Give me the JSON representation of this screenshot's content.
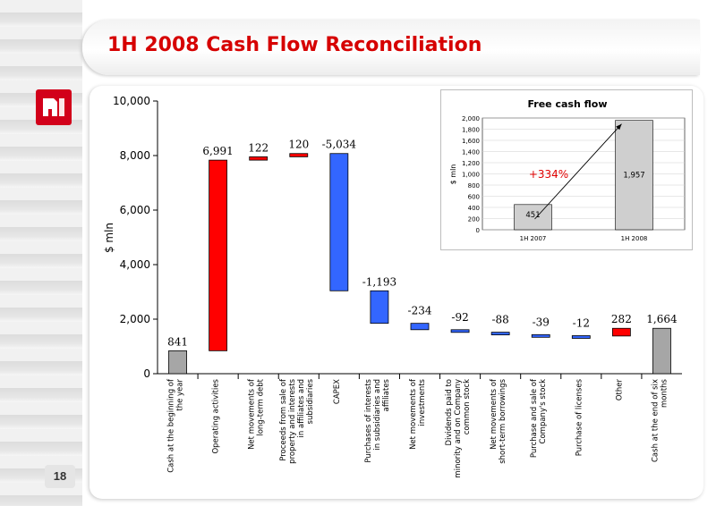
{
  "header": {
    "title": "1H 2008 Cash Flow Reconciliation"
  },
  "logo": {
    "text": "ЛУК"
  },
  "page": {
    "number": "18"
  },
  "colors": {
    "positive": "#ff0000",
    "negative": "#3366ff",
    "total": "#a6a6a6",
    "inset_bar": "#cfcfcf"
  },
  "chart_data": [
    {
      "type": "bar",
      "subtype": "waterfall",
      "title": "",
      "ylabel": "$ mln",
      "ylim": [
        0,
        10000
      ],
      "ytick_labels": [
        "0",
        "2,000",
        "4,000",
        "6,000",
        "8,000",
        "10,000"
      ],
      "grid": false,
      "categories": [
        "Cash at the beginning of the year",
        "Operating activities",
        "Net movements of long-term debt",
        "Proceeds from sale of property and interests in affiliates and subsidiaries",
        "CAPEX",
        "Purchases of interests in subsidiaries and affiliates",
        "Net movements of investments",
        "Dividends paid to minority and on Company common stock",
        "Net movements of short-term borrowings",
        "Purchase and sale of Company's stock",
        "Purchase of licenses",
        "Other",
        "Cash at the end of six months"
      ],
      "values": [
        841,
        6991,
        122,
        120,
        -5034,
        -1193,
        -234,
        -92,
        -88,
        -39,
        -12,
        282,
        1664
      ],
      "data_labels": [
        "841",
        "6,991",
        "122",
        "120",
        "-5,034",
        "-1,193",
        "-234",
        "-92",
        "-88",
        "-39",
        "-12",
        "282",
        "1,664"
      ],
      "bar_kind": [
        "total",
        "positive",
        "positive",
        "positive",
        "negative",
        "negative",
        "negative",
        "negative",
        "negative",
        "negative",
        "negative",
        "positive",
        "total"
      ]
    },
    {
      "type": "bar",
      "title": "Free cash flow",
      "ylabel": "$ mln",
      "ylim": [
        0,
        2000
      ],
      "ytick_labels": [
        "0",
        "200",
        "400",
        "600",
        "800",
        "1,000",
        "1,200",
        "1,400",
        "1,600",
        "1,800",
        "2,000"
      ],
      "grid": true,
      "categories": [
        "1H 2007",
        "1H 2008"
      ],
      "values": [
        451,
        1957
      ],
      "data_labels": [
        "451",
        "1,957"
      ],
      "annotation": "+334%"
    }
  ]
}
